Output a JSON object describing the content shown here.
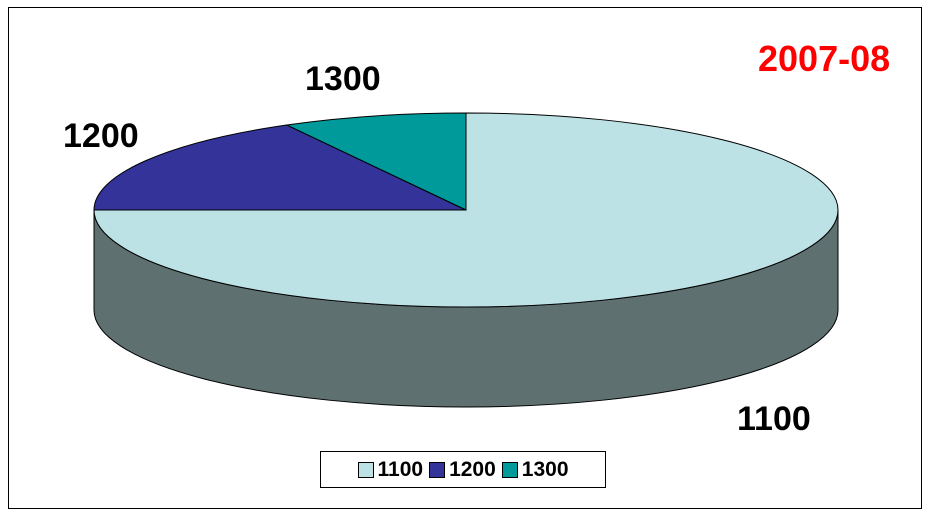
{
  "chart_data": {
    "type": "pie",
    "title": "2007-08",
    "categories": [
      "1100",
      "1200",
      "1300"
    ],
    "values": [
      75,
      17,
      8
    ],
    "colors": [
      "#bde2e6",
      "#33339a",
      "#009a9a"
    ],
    "side_color": "#5e7070",
    "title_color": "#ff0000",
    "legend_position": "bottom",
    "three_d": true
  }
}
